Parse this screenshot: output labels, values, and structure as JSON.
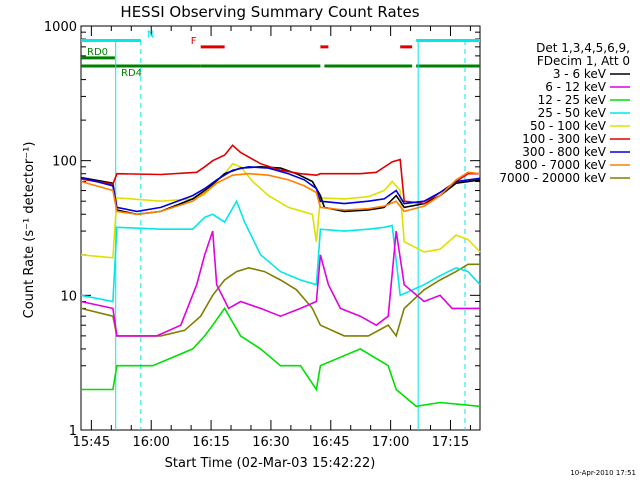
{
  "chart_data": {
    "type": "line",
    "title": "HESSI Observing Summary Count Rates",
    "xlabel": "Start Time (02-Mar-03 15:42:22)",
    "ylabel": "Count Rate (s⁻¹ detector⁻¹)",
    "x_unit": "minutes after 15:42:22",
    "y_scale": "log",
    "ylim": [
      1,
      1000
    ],
    "xlim": [
      0,
      100
    ],
    "x_ticks": [
      {
        "label": "15:45",
        "x": 2.6
      },
      {
        "label": "16:00",
        "x": 17.6
      },
      {
        "label": "16:15",
        "x": 32.6
      },
      {
        "label": "16:30",
        "x": 47.6
      },
      {
        "label": "16:45",
        "x": 62.6
      },
      {
        "label": "17:00",
        "x": 77.6
      },
      {
        "label": "17:15",
        "x": 92.6
      }
    ],
    "y_ticks": [
      {
        "label": "1",
        "y": 1
      },
      {
        "label": "10",
        "y": 10
      },
      {
        "label": "100",
        "y": 100
      },
      {
        "label": "1000",
        "y": 1000
      }
    ],
    "legend_header": [
      "Det 1,3,4,5,6,9,",
      "FDecim 1, Att 0"
    ],
    "timestamp": "10-Apr-2010 17:51",
    "series": [
      {
        "name": "3 - 6 keV",
        "color": "#000000",
        "points": [
          [
            0,
            75
          ],
          [
            8,
            68
          ],
          [
            9,
            43
          ],
          [
            14,
            40
          ],
          [
            20,
            42
          ],
          [
            28,
            52
          ],
          [
            31,
            60
          ],
          [
            32.5,
            65
          ],
          [
            36,
            80
          ],
          [
            40,
            88
          ],
          [
            45,
            90
          ],
          [
            50,
            88
          ],
          [
            54,
            80
          ],
          [
            58,
            70
          ],
          [
            60,
            55
          ],
          [
            61,
            45
          ],
          [
            66,
            42
          ],
          [
            72,
            43
          ],
          [
            76,
            45
          ],
          [
            79,
            55
          ],
          [
            81,
            45
          ],
          [
            86,
            48
          ],
          [
            90,
            55
          ],
          [
            94,
            68
          ],
          [
            100,
            72
          ]
        ]
      },
      {
        "name": "6 - 12 keV",
        "color": "#e000e0",
        "points": [
          [
            0,
            9
          ],
          [
            8,
            8
          ],
          [
            9,
            5
          ],
          [
            19,
            5
          ],
          [
            25,
            6
          ],
          [
            29,
            12
          ],
          [
            31,
            20
          ],
          [
            33,
            30
          ],
          [
            34,
            12
          ],
          [
            37,
            8
          ],
          [
            40,
            9
          ],
          [
            45,
            8
          ],
          [
            50,
            7
          ],
          [
            55,
            8
          ],
          [
            59,
            9
          ],
          [
            60,
            20
          ],
          [
            62,
            12
          ],
          [
            65,
            8
          ],
          [
            70,
            7
          ],
          [
            74,
            6
          ],
          [
            77,
            7
          ],
          [
            79,
            30
          ],
          [
            81,
            12
          ],
          [
            86,
            9
          ],
          [
            90,
            10
          ],
          [
            93,
            8
          ],
          [
            100,
            8
          ]
        ]
      },
      {
        "name": "12 - 25 keV",
        "color": "#00e000",
        "points": [
          [
            0,
            2
          ],
          [
            8,
            2
          ],
          [
            9,
            3
          ],
          [
            18,
            3
          ],
          [
            28,
            4
          ],
          [
            31,
            5
          ],
          [
            33,
            6
          ],
          [
            36,
            8
          ],
          [
            40,
            5
          ],
          [
            45,
            4
          ],
          [
            50,
            3
          ],
          [
            55,
            3
          ],
          [
            59,
            2
          ],
          [
            60,
            3
          ],
          [
            70,
            4
          ],
          [
            77,
            3
          ],
          [
            79,
            2
          ],
          [
            84,
            1.5
          ],
          [
            90,
            1.6
          ],
          [
            100,
            1.5
          ]
        ]
      },
      {
        "name": "25 - 50 keV",
        "color": "#00e8e8",
        "points": [
          [
            0,
            10
          ],
          [
            8,
            9
          ],
          [
            9,
            32
          ],
          [
            20,
            31
          ],
          [
            28,
            31
          ],
          [
            31,
            38
          ],
          [
            33,
            40
          ],
          [
            36,
            35
          ],
          [
            39,
            50
          ],
          [
            41,
            35
          ],
          [
            45,
            20
          ],
          [
            50,
            15
          ],
          [
            55,
            13
          ],
          [
            59,
            12
          ],
          [
            60,
            31
          ],
          [
            66,
            30
          ],
          [
            72,
            31
          ],
          [
            76,
            32
          ],
          [
            78,
            33
          ],
          [
            80,
            10
          ],
          [
            86,
            12
          ],
          [
            90,
            14
          ],
          [
            94,
            16
          ],
          [
            97,
            15
          ],
          [
            100,
            12
          ]
        ]
      },
      {
        "name": "50 - 100 keV",
        "color": "#e0e000",
        "points": [
          [
            0,
            20
          ],
          [
            8,
            19
          ],
          [
            9,
            53
          ],
          [
            20,
            50
          ],
          [
            28,
            52
          ],
          [
            31,
            56
          ],
          [
            33,
            65
          ],
          [
            36,
            80
          ],
          [
            38,
            95
          ],
          [
            40,
            90
          ],
          [
            43,
            70
          ],
          [
            47,
            55
          ],
          [
            52,
            45
          ],
          [
            58,
            40
          ],
          [
            59,
            25
          ],
          [
            60,
            53
          ],
          [
            66,
            52
          ],
          [
            72,
            54
          ],
          [
            76,
            60
          ],
          [
            78,
            70
          ],
          [
            80,
            60
          ],
          [
            81,
            25
          ],
          [
            86,
            21
          ],
          [
            90,
            22
          ],
          [
            94,
            28
          ],
          [
            97,
            26
          ],
          [
            100,
            21
          ]
        ]
      },
      {
        "name": "100 - 300 keV",
        "color": "#e00000",
        "points": [
          [
            0,
            73
          ],
          [
            8,
            67
          ],
          [
            9,
            80
          ],
          [
            20,
            79
          ],
          [
            29,
            82
          ],
          [
            31,
            90
          ],
          [
            33,
            100
          ],
          [
            36,
            110
          ],
          [
            38,
            130
          ],
          [
            40,
            115
          ],
          [
            45,
            95
          ],
          [
            50,
            85
          ],
          [
            55,
            80
          ],
          [
            59,
            78
          ],
          [
            60,
            80
          ],
          [
            70,
            80
          ],
          [
            74,
            82
          ],
          [
            78,
            98
          ],
          [
            80,
            102
          ],
          [
            81,
            50
          ],
          [
            86,
            48
          ],
          [
            90,
            58
          ],
          [
            94,
            70
          ],
          [
            97,
            80
          ],
          [
            100,
            80
          ]
        ]
      },
      {
        "name": "300 - 800 keV",
        "color": "#0000e0",
        "points": [
          [
            0,
            75
          ],
          [
            8,
            65
          ],
          [
            9,
            45
          ],
          [
            14,
            42
          ],
          [
            20,
            45
          ],
          [
            28,
            55
          ],
          [
            31,
            62
          ],
          [
            34,
            72
          ],
          [
            38,
            85
          ],
          [
            42,
            90
          ],
          [
            47,
            88
          ],
          [
            52,
            80
          ],
          [
            56,
            72
          ],
          [
            59,
            62
          ],
          [
            60,
            50
          ],
          [
            66,
            48
          ],
          [
            72,
            50
          ],
          [
            76,
            52
          ],
          [
            79,
            60
          ],
          [
            81,
            48
          ],
          [
            86,
            50
          ],
          [
            90,
            58
          ],
          [
            94,
            70
          ],
          [
            100,
            74
          ]
        ]
      },
      {
        "name": "800 - 7000 keV",
        "color": "#ff8000",
        "points": [
          [
            0,
            70
          ],
          [
            8,
            60
          ],
          [
            9,
            42
          ],
          [
            14,
            40
          ],
          [
            20,
            42
          ],
          [
            28,
            50
          ],
          [
            31,
            58
          ],
          [
            34,
            68
          ],
          [
            38,
            78
          ],
          [
            42,
            80
          ],
          [
            47,
            78
          ],
          [
            52,
            72
          ],
          [
            56,
            65
          ],
          [
            59,
            58
          ],
          [
            60,
            45
          ],
          [
            66,
            43
          ],
          [
            72,
            44
          ],
          [
            76,
            46
          ],
          [
            79,
            50
          ],
          [
            81,
            42
          ],
          [
            86,
            46
          ],
          [
            90,
            55
          ],
          [
            94,
            72
          ],
          [
            97,
            82
          ],
          [
            100,
            80
          ]
        ]
      },
      {
        "name": "7000 - 20000 keV",
        "color": "#808000",
        "points": [
          [
            0,
            8
          ],
          [
            8,
            7
          ],
          [
            9,
            5
          ],
          [
            14,
            5
          ],
          [
            20,
            5
          ],
          [
            26,
            5.5
          ],
          [
            30,
            7
          ],
          [
            33,
            10
          ],
          [
            36,
            13
          ],
          [
            39,
            15
          ],
          [
            42,
            16
          ],
          [
            46,
            15
          ],
          [
            50,
            13
          ],
          [
            54,
            11
          ],
          [
            58,
            8
          ],
          [
            60,
            6
          ],
          [
            66,
            5
          ],
          [
            72,
            5
          ],
          [
            77,
            6
          ],
          [
            79,
            5
          ],
          [
            81,
            8
          ],
          [
            86,
            11
          ],
          [
            90,
            13
          ],
          [
            94,
            15
          ],
          [
            97,
            17
          ],
          [
            100,
            17
          ]
        ]
      }
    ],
    "flag_annotations": [
      {
        "label": "N",
        "color": "#00e8e8",
        "y": 780,
        "segments": [
          [
            0,
            15
          ],
          [
            84,
            100
          ]
        ]
      },
      {
        "label": "F",
        "color": "#e00000",
        "y": 700,
        "segments": [
          [
            30,
            36
          ],
          [
            60,
            62
          ],
          [
            80,
            83
          ]
        ]
      },
      {
        "label": "RD0",
        "color": "#008000",
        "y": 580,
        "segments": [
          [
            0,
            8.5
          ]
        ]
      },
      {
        "label": "RD4",
        "color": "#008000",
        "y": 505,
        "segments": [
          [
            0,
            30
          ],
          [
            30,
            60
          ],
          [
            61,
            83
          ],
          [
            84,
            100
          ]
        ]
      }
    ],
    "vertical_markers": [
      {
        "x": 8.7,
        "style": "solid",
        "color": "#00e8e8"
      },
      {
        "x": 15,
        "style": "dashed",
        "color": "#00e8e8"
      },
      {
        "x": 84.5,
        "style": "solid",
        "color": "#00e8e8"
      },
      {
        "x": 100,
        "style": "dashed",
        "color": "#00e8e8"
      }
    ]
  }
}
